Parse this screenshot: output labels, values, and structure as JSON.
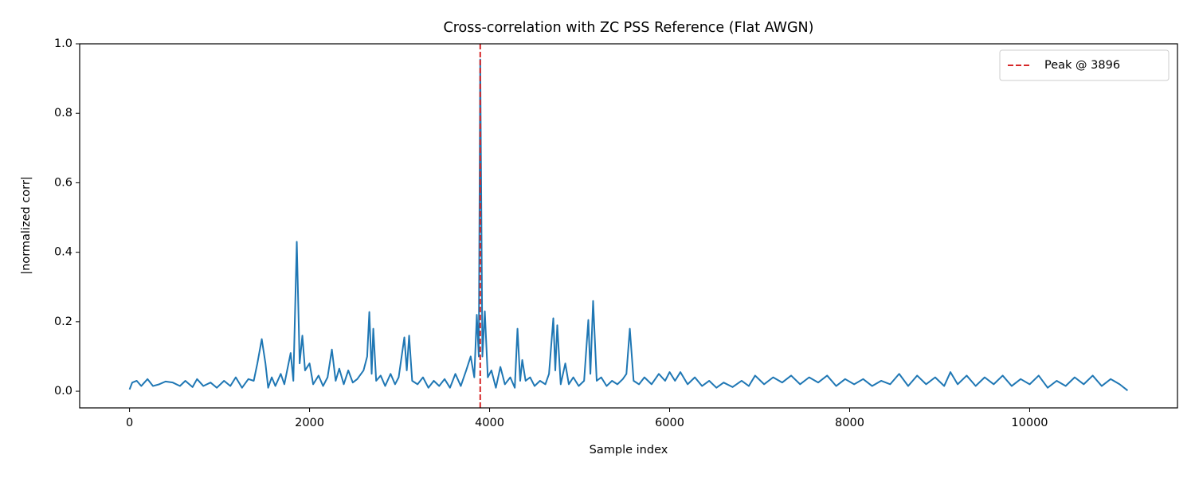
{
  "chart_data": {
    "type": "line",
    "title": "Cross-correlation with ZC PSS Reference (Flat AWGN)",
    "xlabel": "Sample index",
    "ylabel": "|normalized corr|",
    "x": [
      0,
      30,
      80,
      130,
      200,
      260,
      330,
      400,
      480,
      560,
      620,
      700,
      750,
      820,
      900,
      970,
      1050,
      1120,
      1180,
      1250,
      1320,
      1380,
      1420,
      1469,
      1510,
      1540,
      1580,
      1620,
      1680,
      1720,
      1790,
      1820,
      1858,
      1890,
      1920,
      1950,
      2000,
      2040,
      2100,
      2150,
      2200,
      2248,
      2290,
      2330,
      2380,
      2430,
      2480,
      2530,
      2600,
      2640,
      2664,
      2690,
      2708,
      2740,
      2790,
      2840,
      2900,
      2950,
      2990,
      3053,
      3080,
      3106,
      3140,
      3200,
      3260,
      3320,
      3380,
      3440,
      3500,
      3560,
      3620,
      3680,
      3740,
      3790,
      3830,
      3858,
      3880,
      3896,
      3920,
      3947,
      3980,
      4020,
      4070,
      4120,
      4170,
      4230,
      4280,
      4310,
      4340,
      4363,
      4400,
      4450,
      4500,
      4560,
      4620,
      4660,
      4708,
      4730,
      4752,
      4790,
      4841,
      4880,
      4930,
      4990,
      5050,
      5097,
      5120,
      5150,
      5190,
      5240,
      5300,
      5360,
      5420,
      5480,
      5520,
      5558,
      5600,
      5660,
      5720,
      5800,
      5880,
      5950,
      6000,
      6060,
      6120,
      6200,
      6280,
      6360,
      6440,
      6520,
      6600,
      6700,
      6800,
      6880,
      6950,
      7050,
      7150,
      7250,
      7350,
      7450,
      7550,
      7650,
      7750,
      7850,
      7950,
      8050,
      8150,
      8250,
      8350,
      8450,
      8550,
      8650,
      8750,
      8850,
      8950,
      9050,
      9120,
      9200,
      9300,
      9400,
      9500,
      9600,
      9700,
      9800,
      9900,
      10000,
      10100,
      10200,
      10300,
      10400,
      10500,
      10600,
      10700,
      10800,
      10900,
      11000,
      11088
    ],
    "series": [
      {
        "color": "#1f77b4",
        "values": [
          0.005,
          0.025,
          0.03,
          0.015,
          0.035,
          0.015,
          0.02,
          0.028,
          0.025,
          0.015,
          0.03,
          0.012,
          0.035,
          0.015,
          0.025,
          0.01,
          0.03,
          0.015,
          0.04,
          0.01,
          0.035,
          0.03,
          0.08,
          0.15,
          0.08,
          0.01,
          0.04,
          0.015,
          0.05,
          0.02,
          0.11,
          0.03,
          0.43,
          0.08,
          0.16,
          0.06,
          0.08,
          0.02,
          0.045,
          0.015,
          0.04,
          0.12,
          0.03,
          0.065,
          0.02,
          0.06,
          0.025,
          0.035,
          0.06,
          0.1,
          0.228,
          0.05,
          0.18,
          0.03,
          0.045,
          0.015,
          0.05,
          0.02,
          0.04,
          0.155,
          0.06,
          0.16,
          0.03,
          0.02,
          0.04,
          0.01,
          0.03,
          0.015,
          0.035,
          0.01,
          0.05,
          0.015,
          0.06,
          0.1,
          0.04,
          0.22,
          0.1,
          0.955,
          0.1,
          0.23,
          0.04,
          0.06,
          0.01,
          0.07,
          0.02,
          0.04,
          0.01,
          0.18,
          0.03,
          0.09,
          0.03,
          0.04,
          0.015,
          0.03,
          0.02,
          0.05,
          0.21,
          0.06,
          0.19,
          0.02,
          0.08,
          0.02,
          0.04,
          0.015,
          0.03,
          0.205,
          0.05,
          0.26,
          0.03,
          0.04,
          0.015,
          0.03,
          0.02,
          0.035,
          0.05,
          0.18,
          0.03,
          0.02,
          0.04,
          0.02,
          0.05,
          0.03,
          0.055,
          0.03,
          0.055,
          0.02,
          0.04,
          0.015,
          0.03,
          0.01,
          0.025,
          0.012,
          0.03,
          0.015,
          0.045,
          0.02,
          0.04,
          0.025,
          0.045,
          0.02,
          0.04,
          0.025,
          0.045,
          0.015,
          0.035,
          0.02,
          0.035,
          0.015,
          0.03,
          0.02,
          0.05,
          0.015,
          0.045,
          0.02,
          0.04,
          0.015,
          0.055,
          0.02,
          0.045,
          0.015,
          0.04,
          0.02,
          0.045,
          0.015,
          0.035,
          0.02,
          0.045,
          0.01,
          0.03,
          0.015,
          0.04,
          0.02,
          0.045,
          0.015,
          0.035,
          0.02,
          0.002
        ]
      }
    ],
    "vline": {
      "name": "Peak @ 3896",
      "x": 3896,
      "color": "#d62728",
      "dashed": true
    },
    "legend": "upper right",
    "xlim": [
      -554,
      11642
    ],
    "ylim": [
      -0.048,
      1.0
    ],
    "xticks": [
      0,
      2000,
      4000,
      6000,
      8000,
      10000
    ],
    "yticks": [
      {
        "value": 0,
        "label": "0.0"
      },
      0.2,
      0.4,
      0.6,
      0.8,
      {
        "value": 1,
        "label": "1.0"
      }
    ]
  }
}
